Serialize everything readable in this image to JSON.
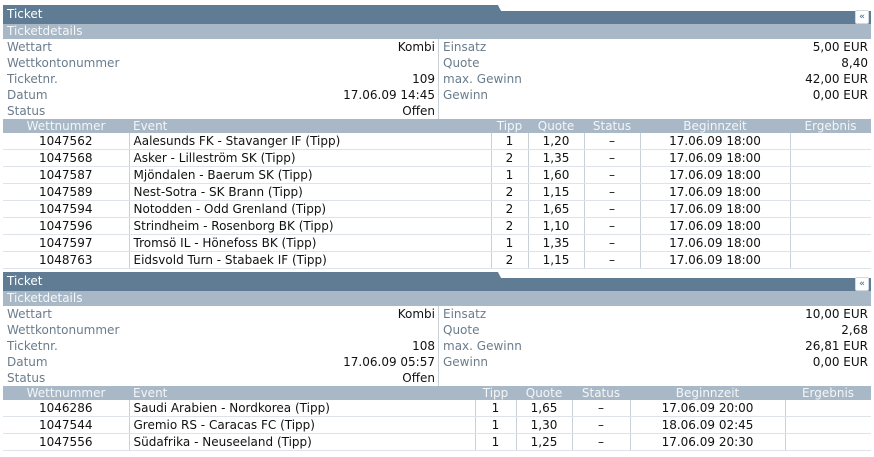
{
  "tickets": [
    {
      "title": "Ticket",
      "section": "Ticketdetails",
      "left": [
        {
          "label": "Wettart",
          "value": "Kombi"
        },
        {
          "label": "Wettkontonummer",
          "value": ""
        },
        {
          "label": "Ticketnr.",
          "value": "109"
        },
        {
          "label": "Datum",
          "value": "17.06.09 14:45"
        },
        {
          "label": "Status",
          "value": "Offen"
        }
      ],
      "right": [
        {
          "label": "Einsatz",
          "value": "5,00 EUR"
        },
        {
          "label": "Quote",
          "value": "8,40"
        },
        {
          "label": "max. Gewinn",
          "value": "42,00 EUR"
        },
        {
          "label": "Gewinn",
          "value": "0,00 EUR"
        }
      ],
      "columns": [
        "Wettnummer",
        "Event",
        "Tipp",
        "Quote",
        "Status",
        "Beginnzeit",
        "Ergebnis"
      ],
      "rows": [
        {
          "nr": "1047562",
          "event": "Aalesunds FK - Stavanger IF (Tipp)",
          "tipp": "1",
          "quote": "1,20",
          "status": "–",
          "time": "17.06.09 18:00",
          "result": ""
        },
        {
          "nr": "1047568",
          "event": "Asker - Lilleström SK (Tipp)",
          "tipp": "2",
          "quote": "1,35",
          "status": "–",
          "time": "17.06.09 18:00",
          "result": ""
        },
        {
          "nr": "1047587",
          "event": "Mjöndalen - Baerum SK (Tipp)",
          "tipp": "1",
          "quote": "1,60",
          "status": "–",
          "time": "17.06.09 18:00",
          "result": ""
        },
        {
          "nr": "1047589",
          "event": "Nest-Sotra - SK Brann (Tipp)",
          "tipp": "2",
          "quote": "1,15",
          "status": "–",
          "time": "17.06.09 18:00",
          "result": ""
        },
        {
          "nr": "1047594",
          "event": "Notodden - Odd Grenland (Tipp)",
          "tipp": "2",
          "quote": "1,65",
          "status": "–",
          "time": "17.06.09 18:00",
          "result": ""
        },
        {
          "nr": "1047596",
          "event": "Strindheim - Rosenborg BK (Tipp)",
          "tipp": "2",
          "quote": "1,10",
          "status": "–",
          "time": "17.06.09 18:00",
          "result": ""
        },
        {
          "nr": "1047597",
          "event": "Tromsö IL - Hönefoss BK (Tipp)",
          "tipp": "1",
          "quote": "1,35",
          "status": "–",
          "time": "17.06.09 18:00",
          "result": ""
        },
        {
          "nr": "1048763",
          "event": "Eidsvold Turn - Stabaek IF (Tipp)",
          "tipp": "2",
          "quote": "1,15",
          "status": "–",
          "time": "17.06.09 18:00",
          "result": ""
        }
      ]
    },
    {
      "title": "Ticket",
      "section": "Ticketdetails",
      "left": [
        {
          "label": "Wettart",
          "value": "Kombi"
        },
        {
          "label": "Wettkontonummer",
          "value": ""
        },
        {
          "label": "Ticketnr.",
          "value": "108"
        },
        {
          "label": "Datum",
          "value": "17.06.09 05:57"
        },
        {
          "label": "Status",
          "value": "Offen"
        }
      ],
      "right": [
        {
          "label": "Einsatz",
          "value": "10,00 EUR"
        },
        {
          "label": "Quote",
          "value": "2,68"
        },
        {
          "label": "max. Gewinn",
          "value": "26,81 EUR"
        },
        {
          "label": "Gewinn",
          "value": "0,00 EUR"
        }
      ],
      "columns": [
        "Wettnummer",
        "Event",
        "Tipp",
        "Quote",
        "Status",
        "Beginnzeit",
        "Ergebnis"
      ],
      "rows": [
        {
          "nr": "1046286",
          "event": "Saudi Arabien - Nordkorea (Tipp)",
          "tipp": "1",
          "quote": "1,65",
          "status": "–",
          "time": "17.06.09 20:00",
          "result": ""
        },
        {
          "nr": "1047544",
          "event": "Gremio RS - Caracas FC (Tipp)",
          "tipp": "1",
          "quote": "1,30",
          "status": "–",
          "time": "18.06.09 02:45",
          "result": ""
        },
        {
          "nr": "1047556",
          "event": "Südafrika - Neuseeland (Tipp)",
          "tipp": "1",
          "quote": "1,25",
          "status": "–",
          "time": "17.06.09 20:30",
          "result": ""
        }
      ]
    }
  ],
  "colors": {
    "header": "#5f7c94",
    "subheader": "#a8b8c6",
    "label": "#6a7c8c"
  },
  "icons": {
    "collapse": "double-chevron-left-icon"
  }
}
